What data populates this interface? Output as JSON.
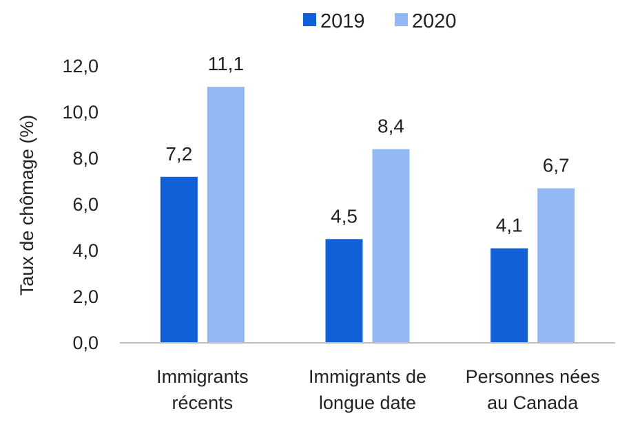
{
  "chart_data": {
    "type": "bar",
    "categories": [
      [
        "Immigrants",
        "récents"
      ],
      [
        "Immigrants de",
        "longue date"
      ],
      [
        "Personnes nées",
        "au Canada"
      ]
    ],
    "series": [
      {
        "name": "2019",
        "values": [
          7.2,
          4.5,
          4.1
        ],
        "labels": [
          "7,2",
          "4,5",
          "4,1"
        ],
        "color": "#1160D6"
      },
      {
        "name": "2020",
        "values": [
          11.1,
          8.4,
          6.7
        ],
        "labels": [
          "11,1",
          "8,4",
          "6,7"
        ],
        "color": "#93B9F5"
      }
    ],
    "ylabel": "Taux de chômage (%)",
    "ylim": [
      0,
      12
    ],
    "yticks": [
      0,
      2,
      4,
      6,
      8,
      10,
      12
    ],
    "ytick_labels": [
      "0,0",
      "2,0",
      "4,0",
      "6,0",
      "8,0",
      "10,0",
      "12,0"
    ],
    "legend_position": "top",
    "grid": false,
    "axis_color": "#BFBFBF"
  }
}
